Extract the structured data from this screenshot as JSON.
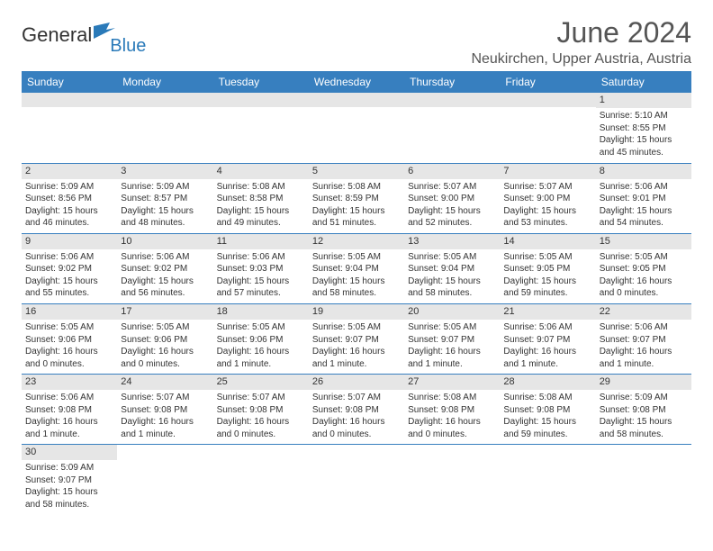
{
  "logo": {
    "text1": "General",
    "text2": "Blue"
  },
  "title": "June 2024",
  "location": "Neukirchen, Upper Austria, Austria",
  "colors": {
    "header_bg": "#377fbf",
    "header_text": "#ffffff",
    "daynum_bg": "#e6e6e6",
    "border": "#377fbf",
    "title_color": "#555555"
  },
  "weekdays": [
    "Sunday",
    "Monday",
    "Tuesday",
    "Wednesday",
    "Thursday",
    "Friday",
    "Saturday"
  ],
  "weeks": [
    [
      null,
      null,
      null,
      null,
      null,
      null,
      {
        "n": "1",
        "sunrise": "5:10 AM",
        "sunset": "8:55 PM",
        "daylight": "15 hours and 45 minutes."
      }
    ],
    [
      {
        "n": "2",
        "sunrise": "5:09 AM",
        "sunset": "8:56 PM",
        "daylight": "15 hours and 46 minutes."
      },
      {
        "n": "3",
        "sunrise": "5:09 AM",
        "sunset": "8:57 PM",
        "daylight": "15 hours and 48 minutes."
      },
      {
        "n": "4",
        "sunrise": "5:08 AM",
        "sunset": "8:58 PM",
        "daylight": "15 hours and 49 minutes."
      },
      {
        "n": "5",
        "sunrise": "5:08 AM",
        "sunset": "8:59 PM",
        "daylight": "15 hours and 51 minutes."
      },
      {
        "n": "6",
        "sunrise": "5:07 AM",
        "sunset": "9:00 PM",
        "daylight": "15 hours and 52 minutes."
      },
      {
        "n": "7",
        "sunrise": "5:07 AM",
        "sunset": "9:00 PM",
        "daylight": "15 hours and 53 minutes."
      },
      {
        "n": "8",
        "sunrise": "5:06 AM",
        "sunset": "9:01 PM",
        "daylight": "15 hours and 54 minutes."
      }
    ],
    [
      {
        "n": "9",
        "sunrise": "5:06 AM",
        "sunset": "9:02 PM",
        "daylight": "15 hours and 55 minutes."
      },
      {
        "n": "10",
        "sunrise": "5:06 AM",
        "sunset": "9:02 PM",
        "daylight": "15 hours and 56 minutes."
      },
      {
        "n": "11",
        "sunrise": "5:06 AM",
        "sunset": "9:03 PM",
        "daylight": "15 hours and 57 minutes."
      },
      {
        "n": "12",
        "sunrise": "5:05 AM",
        "sunset": "9:04 PM",
        "daylight": "15 hours and 58 minutes."
      },
      {
        "n": "13",
        "sunrise": "5:05 AM",
        "sunset": "9:04 PM",
        "daylight": "15 hours and 58 minutes."
      },
      {
        "n": "14",
        "sunrise": "5:05 AM",
        "sunset": "9:05 PM",
        "daylight": "15 hours and 59 minutes."
      },
      {
        "n": "15",
        "sunrise": "5:05 AM",
        "sunset": "9:05 PM",
        "daylight": "16 hours and 0 minutes."
      }
    ],
    [
      {
        "n": "16",
        "sunrise": "5:05 AM",
        "sunset": "9:06 PM",
        "daylight": "16 hours and 0 minutes."
      },
      {
        "n": "17",
        "sunrise": "5:05 AM",
        "sunset": "9:06 PM",
        "daylight": "16 hours and 0 minutes."
      },
      {
        "n": "18",
        "sunrise": "5:05 AM",
        "sunset": "9:06 PM",
        "daylight": "16 hours and 1 minute."
      },
      {
        "n": "19",
        "sunrise": "5:05 AM",
        "sunset": "9:07 PM",
        "daylight": "16 hours and 1 minute."
      },
      {
        "n": "20",
        "sunrise": "5:05 AM",
        "sunset": "9:07 PM",
        "daylight": "16 hours and 1 minute."
      },
      {
        "n": "21",
        "sunrise": "5:06 AM",
        "sunset": "9:07 PM",
        "daylight": "16 hours and 1 minute."
      },
      {
        "n": "22",
        "sunrise": "5:06 AM",
        "sunset": "9:07 PM",
        "daylight": "16 hours and 1 minute."
      }
    ],
    [
      {
        "n": "23",
        "sunrise": "5:06 AM",
        "sunset": "9:08 PM",
        "daylight": "16 hours and 1 minute."
      },
      {
        "n": "24",
        "sunrise": "5:07 AM",
        "sunset": "9:08 PM",
        "daylight": "16 hours and 1 minute."
      },
      {
        "n": "25",
        "sunrise": "5:07 AM",
        "sunset": "9:08 PM",
        "daylight": "16 hours and 0 minutes."
      },
      {
        "n": "26",
        "sunrise": "5:07 AM",
        "sunset": "9:08 PM",
        "daylight": "16 hours and 0 minutes."
      },
      {
        "n": "27",
        "sunrise": "5:08 AM",
        "sunset": "9:08 PM",
        "daylight": "16 hours and 0 minutes."
      },
      {
        "n": "28",
        "sunrise": "5:08 AM",
        "sunset": "9:08 PM",
        "daylight": "15 hours and 59 minutes."
      },
      {
        "n": "29",
        "sunrise": "5:09 AM",
        "sunset": "9:08 PM",
        "daylight": "15 hours and 58 minutes."
      }
    ],
    [
      {
        "n": "30",
        "sunrise": "5:09 AM",
        "sunset": "9:07 PM",
        "daylight": "15 hours and 58 minutes."
      },
      null,
      null,
      null,
      null,
      null,
      null
    ]
  ],
  "labels": {
    "sunrise": "Sunrise:",
    "sunset": "Sunset:",
    "daylight": "Daylight:"
  }
}
